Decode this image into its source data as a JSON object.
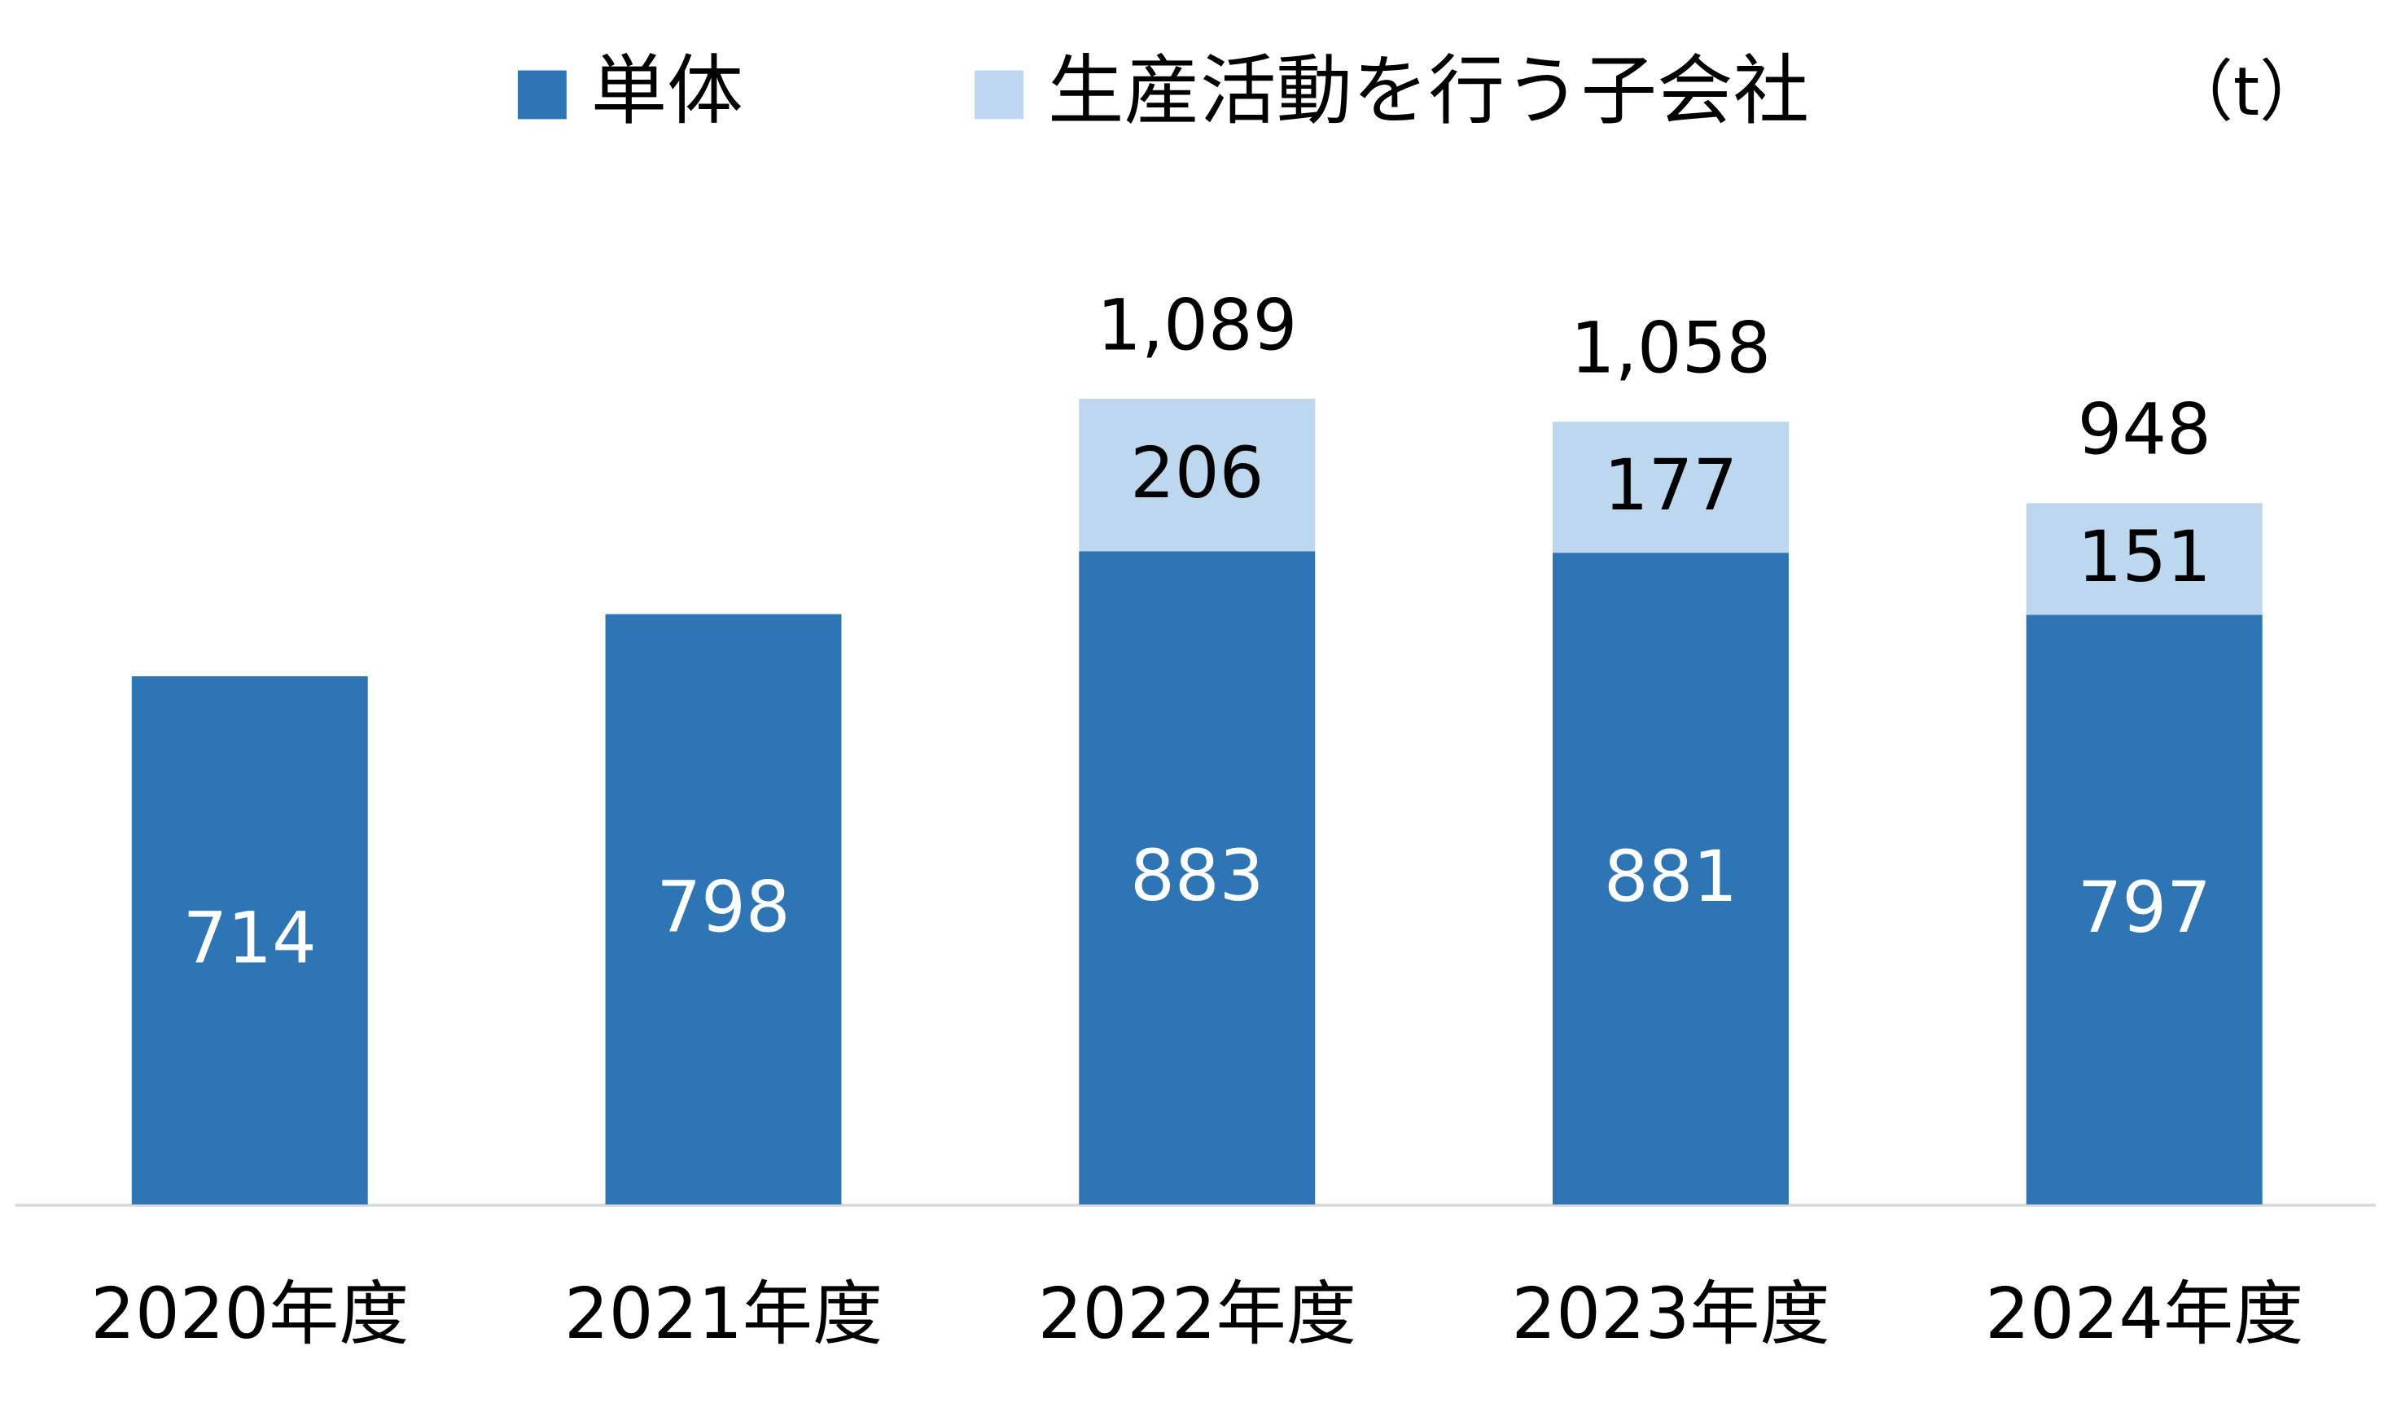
{
  "chart_data": {
    "type": "stacked-bar",
    "unit": "（t）",
    "categories": [
      "2020年度",
      "2021年度",
      "2022年度",
      "2023年度",
      "2024年度"
    ],
    "series": [
      {
        "name": "単体",
        "color": "#2e75b6",
        "label_color": "#ffffff",
        "values": [
          714,
          798,
          883,
          881,
          797
        ]
      },
      {
        "name": "生産活動を行う子会社",
        "color": "#bdd7ee",
        "label_color": "#000000",
        "values": [
          null,
          null,
          206,
          177,
          151
        ]
      }
    ],
    "totals": {
      "values": [
        null,
        null,
        1089,
        1058,
        948
      ],
      "value_labels": [
        null,
        null,
        "1,089",
        "1,058",
        "948"
      ]
    }
  }
}
